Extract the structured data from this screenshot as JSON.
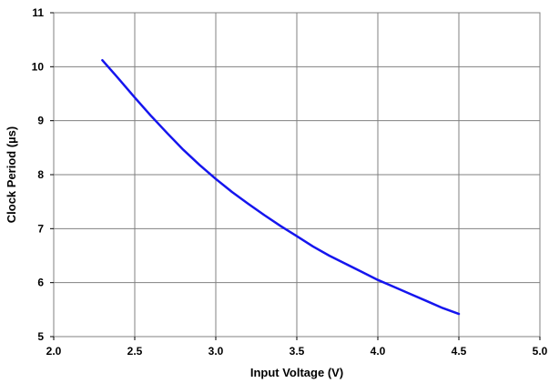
{
  "chart_data": {
    "type": "line",
    "title": "",
    "xlabel": "Input Voltage (V)",
    "ylabel": "Clock Period (µs)",
    "xlim": [
      2.0,
      5.0
    ],
    "ylim": [
      5,
      11
    ],
    "x_ticks": [
      "2.0",
      "2.5",
      "3.0",
      "3.5",
      "4.0",
      "4.5",
      "5.0"
    ],
    "y_ticks": [
      "5",
      "6",
      "7",
      "8",
      "9",
      "10",
      "11"
    ],
    "grid": true,
    "legend": "none",
    "series": [
      {
        "color": "#1515ee",
        "x": [
          2.3,
          2.4,
          2.5,
          2.6,
          2.7,
          2.8,
          2.9,
          3.0,
          3.1,
          3.2,
          3.3,
          3.4,
          3.5,
          3.6,
          3.7,
          3.8,
          3.9,
          4.0,
          4.1,
          4.2,
          4.3,
          4.4,
          4.5
        ],
        "y": [
          10.12,
          9.78,
          9.43,
          9.09,
          8.77,
          8.46,
          8.18,
          7.92,
          7.68,
          7.46,
          7.25,
          7.05,
          6.86,
          6.67,
          6.5,
          6.35,
          6.2,
          6.05,
          5.92,
          5.79,
          5.66,
          5.53,
          5.42
        ]
      }
    ]
  }
}
